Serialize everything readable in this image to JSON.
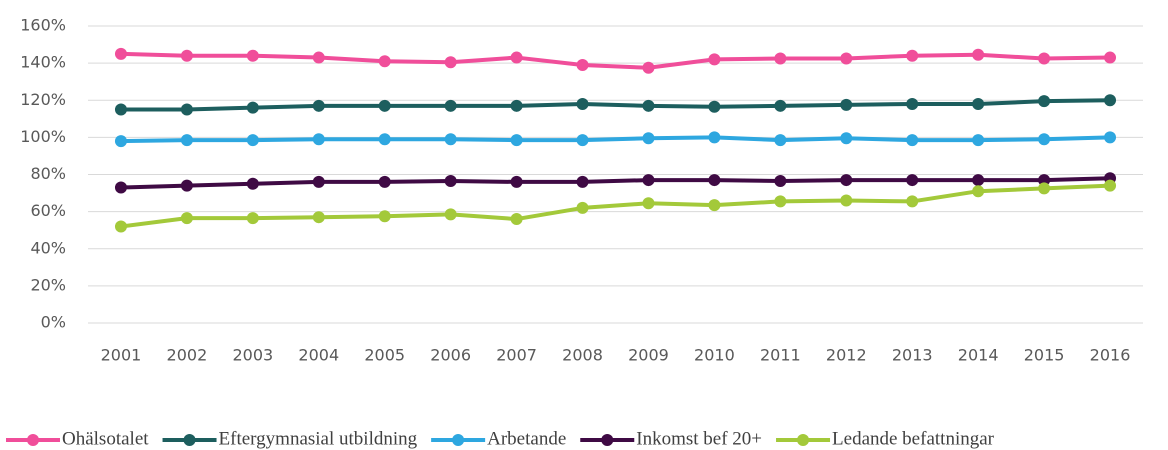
{
  "chart_data": {
    "type": "line",
    "categories": [
      "2001",
      "2002",
      "2003",
      "2004",
      "2005",
      "2006",
      "2007",
      "2008",
      "2009",
      "2010",
      "2011",
      "2012",
      "2013",
      "2014",
      "2015",
      "2016"
    ],
    "series": [
      {
        "name": "Ohälsotalet",
        "color": "#f04e9a",
        "values": [
          145,
          144,
          144,
          143,
          141,
          140.5,
          143,
          139,
          137.5,
          142,
          142.5,
          142.5,
          144,
          144.5,
          142.5,
          143
        ]
      },
      {
        "name": "Eftergymnasial utbildning",
        "color": "#1d5e5e",
        "values": [
          115,
          115,
          116,
          117,
          117,
          117,
          117,
          118,
          117,
          116.5,
          117,
          117.5,
          118,
          118,
          119.5,
          120
        ]
      },
      {
        "name": "Arbetande",
        "color": "#2ea7e0",
        "values": [
          98,
          98.5,
          98.5,
          99,
          99,
          99,
          98.5,
          98.5,
          99.5,
          100,
          98.5,
          99.5,
          98.5,
          98.5,
          99,
          100
        ]
      },
      {
        "name": "Inkomst bef 20+",
        "color": "#3f0a44",
        "values": [
          73,
          74,
          75,
          76,
          76,
          76.5,
          76,
          76,
          77,
          77,
          76.5,
          77,
          77,
          77,
          77,
          78
        ]
      },
      {
        "name": "Ledande befattningar",
        "color": "#a3c93a",
        "values": [
          52,
          56.5,
          56.5,
          57,
          57.5,
          58.5,
          56,
          62,
          64.5,
          63.5,
          65.5,
          66,
          65.5,
          71,
          72.5,
          74
        ]
      }
    ],
    "ylim": [
      0,
      160
    ],
    "yticks": [
      {
        "value": 0,
        "label": "0%"
      },
      {
        "value": 20,
        "label": "20%"
      },
      {
        "value": 40,
        "label": "40%"
      },
      {
        "value": 60,
        "label": "60%"
      },
      {
        "value": 80,
        "label": "80%"
      },
      {
        "value": 100,
        "label": "100%"
      },
      {
        "value": 120,
        "label": "120%"
      },
      {
        "value": 140,
        "label": "140%"
      },
      {
        "value": 160,
        "label": "160%"
      }
    ],
    "grid": true,
    "legend": "bottom"
  }
}
